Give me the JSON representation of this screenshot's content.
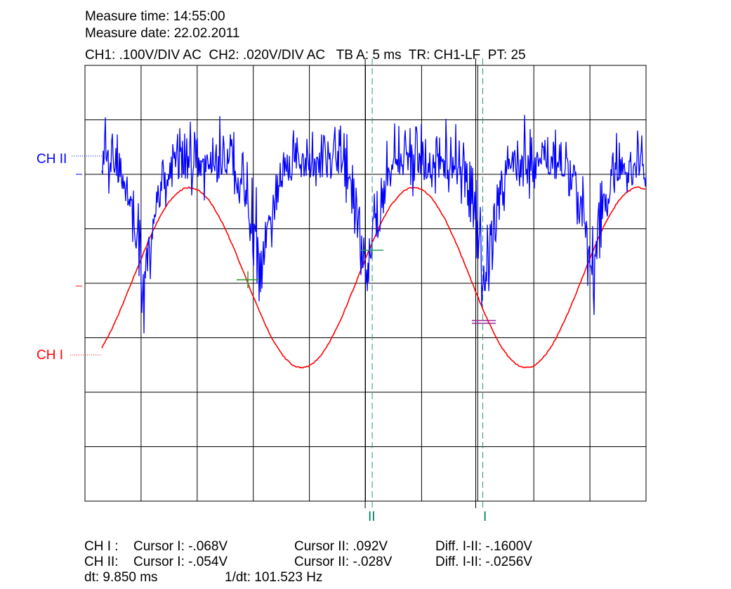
{
  "header": {
    "measure_time": "Measure time: 14:55:00",
    "measure_date": "Measure date: 22.02.2011",
    "settings": "CH1: .100V/DIV AC  CH2: .020V/DIV AC   TB A: 5 ms  TR: CH1-LF  PT: 25"
  },
  "channel_labels": {
    "ch2": "CH II",
    "ch1": "CH I"
  },
  "cursor_markers": {
    "cursor2": "II",
    "cursor1": "I"
  },
  "readouts": {
    "ch1_label": "CH I :",
    "ch1_cursor1": "Cursor I: -.068V",
    "ch1_cursor2": "Cursor II: .092V",
    "ch1_diff": "Diff. I-II: -.1600V",
    "ch2_label": "CH II:",
    "ch2_cursor1": "Cursor I: -.054V",
    "ch2_cursor2": "Cursor II: -.028V",
    "ch2_diff": "Diff. I-II: -.0256V",
    "dt": "dt: 9.850 ms",
    "inv_dt": "1/dt: 101.523 Hz"
  },
  "colors": {
    "ch1": "#ff0000",
    "ch2": "#0000ff",
    "cursor": "#2a9a6a",
    "grid": "#000000"
  },
  "chart_data": {
    "type": "line",
    "grid": true,
    "divisions": {
      "x": 10,
      "y": 8
    },
    "xlim_ms": [
      0,
      50
    ],
    "series": [
      {
        "name": "CH I",
        "kind": "sine",
        "period_ms": 20,
        "divisions_peak": 3.0,
        "offset_divisions": 0.0,
        "phase_start": "trough-rising"
      },
      {
        "name": "CH II",
        "kind": "noisy-rectified",
        "period_ms": 10,
        "upper_divisions": 2.0,
        "dip_divisions": -1.0
      }
    ],
    "cursors": [
      {
        "name": "II",
        "x_ms": 25.6
      },
      {
        "name": "I",
        "x_ms": 35.45
      }
    ]
  }
}
